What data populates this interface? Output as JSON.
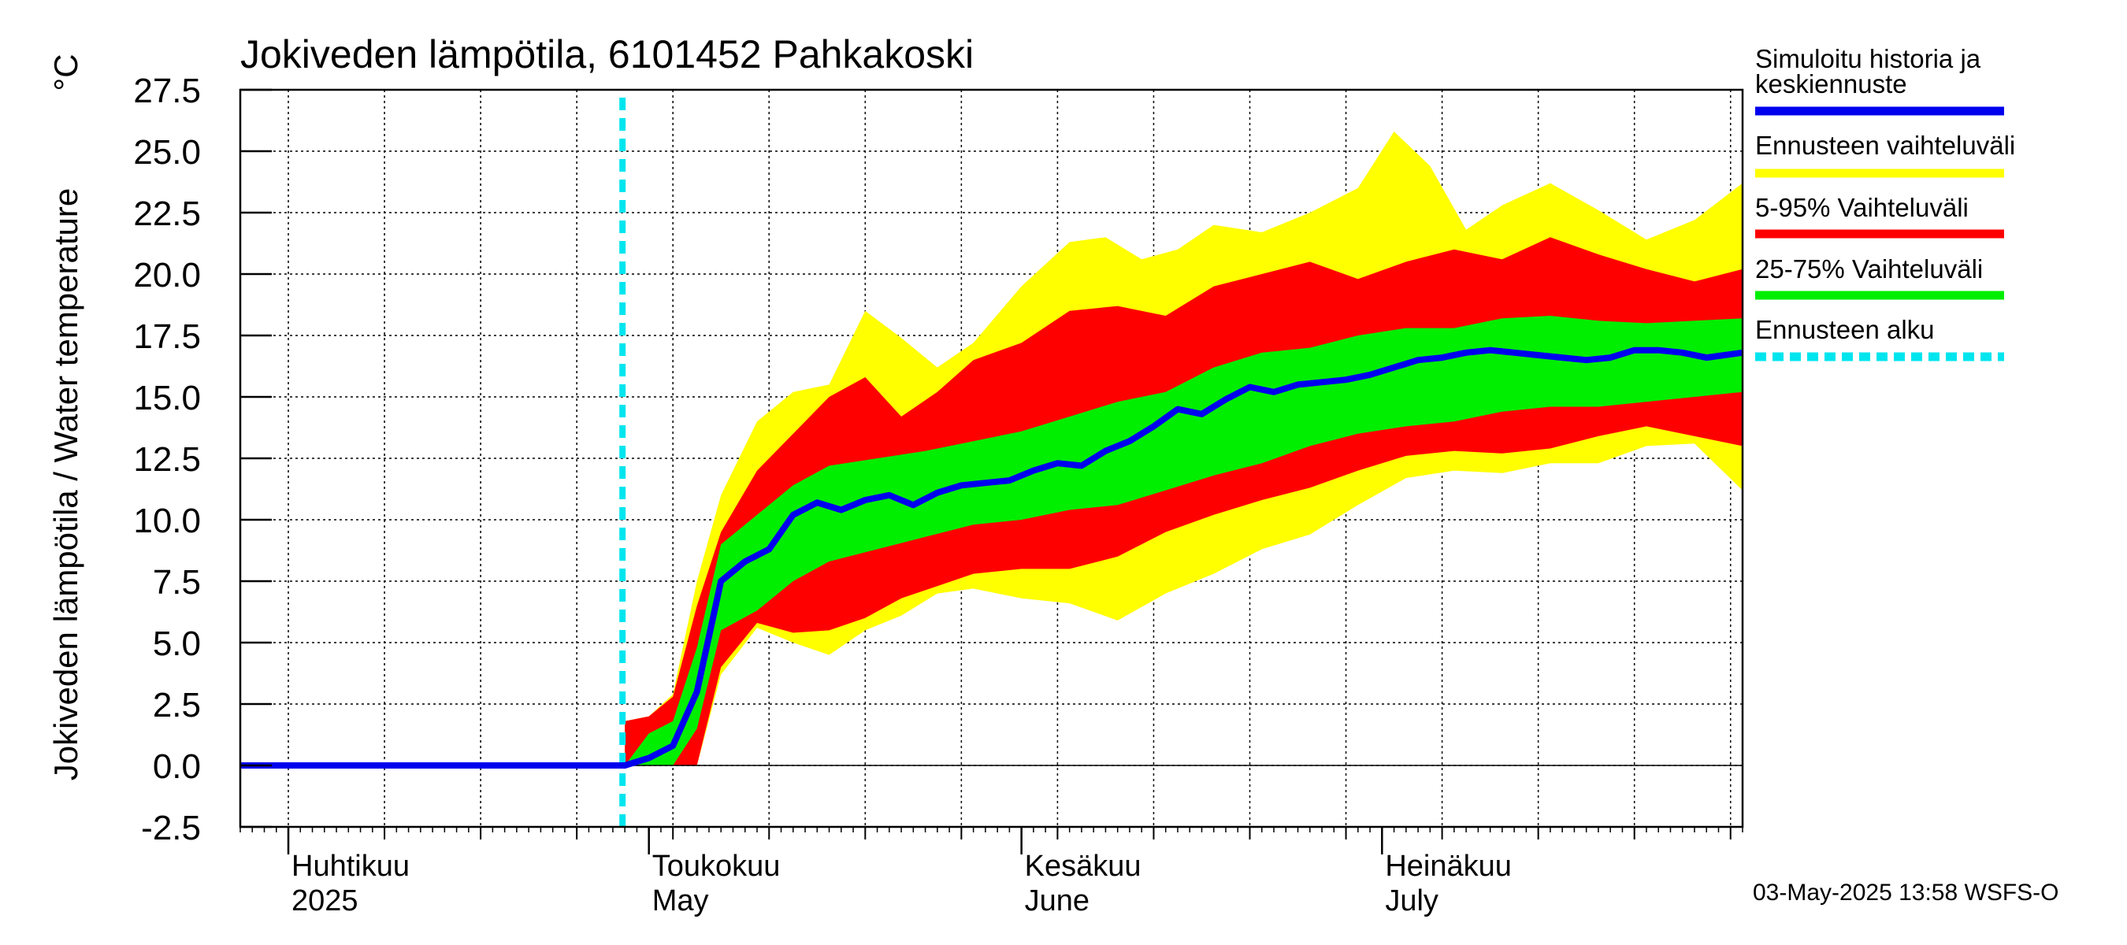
{
  "chart_data": {
    "type": "area",
    "title": "Jokiveden lämpötila, 6101452 Pahkakoski",
    "ylabel": "Jokiveden lämpötila / Water temperature",
    "yunit": "°C",
    "ylim": [
      -2.5,
      27.5
    ],
    "yticks": [
      "27.5",
      "25.0",
      "22.5",
      "20.0",
      "17.5",
      "15.0",
      "12.5",
      "10.0",
      "7.5",
      "5.0",
      "2.5",
      "0.0",
      "-2.5"
    ],
    "xlim": [
      "2025-03-28",
      "2025-07-31"
    ],
    "grid": true,
    "legend_position": "right",
    "month_labels": [
      {
        "date": "2025-04-01",
        "fi": "Huhtikuu",
        "en": "2025"
      },
      {
        "date": "2025-05-01",
        "fi": "Toukokuu",
        "en": "May"
      },
      {
        "date": "2025-06-01",
        "fi": "Kesäkuu",
        "en": "June"
      },
      {
        "date": "2025-07-01",
        "fi": "Heinäkuu",
        "en": "July"
      }
    ],
    "forecast_start": "2025-04-29",
    "legend": [
      {
        "key": "median",
        "label_lines": [
          "Simuloitu historia ja",
          "keskiennuste"
        ],
        "color": "#0000ee"
      },
      {
        "key": "range",
        "label_lines": [
          "Ennusteen vaihteluväli"
        ],
        "color": "#ffff00"
      },
      {
        "key": "p5_95",
        "label_lines": [
          "5-95% Vaihteluväli"
        ],
        "color": "#ff0000"
      },
      {
        "key": "p25_75",
        "label_lines": [
          "25-75% Vaihteluväli"
        ],
        "color": "#00ee00"
      },
      {
        "key": "start",
        "label_lines": [
          "Ennusteen alku"
        ],
        "color": "#00e5ee"
      }
    ],
    "colors": {
      "range": "#ffff00",
      "p5_95": "#ff0000",
      "p25_75": "#00ee00",
      "median": "#0000ee",
      "start": "#00e5ee"
    },
    "series": [
      {
        "key": "median",
        "x": [
          "2025-03-28",
          "2025-04-29",
          "2025-05-01",
          "2025-05-03",
          "2025-05-05",
          "2025-05-07",
          "2025-05-09",
          "2025-05-11",
          "2025-05-13",
          "2025-05-15",
          "2025-05-17",
          "2025-05-19",
          "2025-05-21",
          "2025-05-23",
          "2025-05-25",
          "2025-05-27",
          "2025-05-29",
          "2025-05-31",
          "2025-06-02",
          "2025-06-04",
          "2025-06-06",
          "2025-06-08",
          "2025-06-10",
          "2025-06-12",
          "2025-06-14",
          "2025-06-16",
          "2025-06-18",
          "2025-06-20",
          "2025-06-22",
          "2025-06-24",
          "2025-06-26",
          "2025-06-28",
          "2025-06-30",
          "2025-07-02",
          "2025-07-04",
          "2025-07-06",
          "2025-07-08",
          "2025-07-10",
          "2025-07-12",
          "2025-07-14",
          "2025-07-16",
          "2025-07-18",
          "2025-07-20",
          "2025-07-22",
          "2025-07-24",
          "2025-07-26",
          "2025-07-28",
          "2025-07-31"
        ],
        "y": [
          0.0,
          0.0,
          0.3,
          0.8,
          3.0,
          7.5,
          8.3,
          8.8,
          10.2,
          10.7,
          10.4,
          10.8,
          11.0,
          10.6,
          11.1,
          11.4,
          11.5,
          11.6,
          12.0,
          12.3,
          12.2,
          12.8,
          13.2,
          13.8,
          14.5,
          14.3,
          14.9,
          15.4,
          15.2,
          15.5,
          15.6,
          15.7,
          15.9,
          16.2,
          16.5,
          16.6,
          16.8,
          16.9,
          16.8,
          16.7,
          16.6,
          16.5,
          16.6,
          16.9,
          16.9,
          16.8,
          16.6,
          16.8
        ]
      },
      {
        "key": "p25_75_upper",
        "x": [
          "2025-04-29",
          "2025-05-01",
          "2025-05-03",
          "2025-05-05",
          "2025-05-07",
          "2025-05-10",
          "2025-05-13",
          "2025-05-16",
          "2025-05-20",
          "2025-05-24",
          "2025-05-28",
          "2025-06-01",
          "2025-06-05",
          "2025-06-09",
          "2025-06-13",
          "2025-06-17",
          "2025-06-21",
          "2025-06-25",
          "2025-06-29",
          "2025-07-03",
          "2025-07-07",
          "2025-07-11",
          "2025-07-15",
          "2025-07-19",
          "2025-07-23",
          "2025-07-27",
          "2025-07-31"
        ],
        "y": [
          0.0,
          1.3,
          1.8,
          4.8,
          9.0,
          10.2,
          11.4,
          12.2,
          12.5,
          12.8,
          13.2,
          13.6,
          14.2,
          14.8,
          15.2,
          16.2,
          16.8,
          17.0,
          17.5,
          17.8,
          17.8,
          18.2,
          18.3,
          18.1,
          18.0,
          18.1,
          18.2
        ]
      },
      {
        "key": "p25_75_lower",
        "x": [
          "2025-04-29",
          "2025-05-01",
          "2025-05-03",
          "2025-05-05",
          "2025-05-07",
          "2025-05-10",
          "2025-05-13",
          "2025-05-16",
          "2025-05-20",
          "2025-05-24",
          "2025-05-28",
          "2025-06-01",
          "2025-06-05",
          "2025-06-09",
          "2025-06-13",
          "2025-06-17",
          "2025-06-21",
          "2025-06-25",
          "2025-06-29",
          "2025-07-03",
          "2025-07-07",
          "2025-07-11",
          "2025-07-15",
          "2025-07-19",
          "2025-07-23",
          "2025-07-27",
          "2025-07-31"
        ],
        "y": [
          0.0,
          0.0,
          0.0,
          1.5,
          5.5,
          6.3,
          7.5,
          8.3,
          8.8,
          9.3,
          9.8,
          10.0,
          10.4,
          10.6,
          11.2,
          11.8,
          12.3,
          13.0,
          13.5,
          13.8,
          14.0,
          14.4,
          14.6,
          14.6,
          14.8,
          15.0,
          15.2
        ]
      },
      {
        "key": "p5_95_upper",
        "x": [
          "2025-04-29",
          "2025-05-01",
          "2025-05-03",
          "2025-05-05",
          "2025-05-07",
          "2025-05-10",
          "2025-05-13",
          "2025-05-16",
          "2025-05-19",
          "2025-05-22",
          "2025-05-25",
          "2025-05-28",
          "2025-06-01",
          "2025-06-05",
          "2025-06-09",
          "2025-06-13",
          "2025-06-17",
          "2025-06-21",
          "2025-06-25",
          "2025-06-29",
          "2025-07-03",
          "2025-07-07",
          "2025-07-11",
          "2025-07-15",
          "2025-07-19",
          "2025-07-23",
          "2025-07-27",
          "2025-07-31"
        ],
        "y": [
          1.8,
          2.0,
          2.8,
          6.5,
          9.5,
          12.0,
          13.5,
          15.0,
          15.8,
          14.2,
          15.2,
          16.5,
          17.2,
          18.5,
          18.7,
          18.3,
          19.5,
          20.0,
          20.5,
          19.8,
          20.5,
          21.0,
          20.6,
          21.5,
          20.8,
          20.2,
          19.7,
          20.2
        ]
      },
      {
        "key": "p5_95_lower",
        "x": [
          "2025-04-29",
          "2025-05-01",
          "2025-05-03",
          "2025-05-05",
          "2025-05-07",
          "2025-05-10",
          "2025-05-13",
          "2025-05-16",
          "2025-05-19",
          "2025-05-22",
          "2025-05-25",
          "2025-05-28",
          "2025-06-01",
          "2025-06-05",
          "2025-06-09",
          "2025-06-13",
          "2025-06-17",
          "2025-06-21",
          "2025-06-25",
          "2025-06-29",
          "2025-07-03",
          "2025-07-07",
          "2025-07-11",
          "2025-07-15",
          "2025-07-19",
          "2025-07-23",
          "2025-07-27",
          "2025-07-31"
        ],
        "y": [
          0.0,
          0.0,
          0.0,
          0.0,
          4.0,
          5.8,
          5.4,
          5.5,
          6.0,
          6.8,
          7.3,
          7.8,
          8.0,
          8.0,
          8.5,
          9.5,
          10.2,
          10.8,
          11.3,
          12.0,
          12.6,
          12.8,
          12.7,
          12.9,
          13.4,
          13.8,
          13.4,
          13.0
        ]
      },
      {
        "key": "range_upper",
        "x": [
          "2025-04-29",
          "2025-05-01",
          "2025-05-03",
          "2025-05-05",
          "2025-05-07",
          "2025-05-10",
          "2025-05-13",
          "2025-05-16",
          "2025-05-19",
          "2025-05-22",
          "2025-05-25",
          "2025-05-28",
          "2025-06-01",
          "2025-06-05",
          "2025-06-08",
          "2025-06-11",
          "2025-06-14",
          "2025-06-17",
          "2025-06-21",
          "2025-06-25",
          "2025-06-29",
          "2025-07-02",
          "2025-07-05",
          "2025-07-08",
          "2025-07-11",
          "2025-07-15",
          "2025-07-19",
          "2025-07-23",
          "2025-07-27",
          "2025-07-31"
        ],
        "y": [
          1.8,
          2.0,
          2.9,
          7.5,
          11.0,
          14.0,
          15.2,
          15.5,
          18.5,
          17.4,
          16.2,
          17.2,
          19.5,
          21.3,
          21.5,
          20.6,
          21.0,
          22.0,
          21.7,
          22.5,
          23.5,
          25.8,
          24.4,
          21.8,
          22.8,
          23.7,
          22.6,
          21.4,
          22.2,
          23.7
        ]
      },
      {
        "key": "range_lower",
        "x": [
          "2025-04-29",
          "2025-05-01",
          "2025-05-03",
          "2025-05-05",
          "2025-05-07",
          "2025-05-10",
          "2025-05-13",
          "2025-05-16",
          "2025-05-19",
          "2025-05-22",
          "2025-05-25",
          "2025-05-28",
          "2025-06-01",
          "2025-06-05",
          "2025-06-09",
          "2025-06-13",
          "2025-06-17",
          "2025-06-21",
          "2025-06-25",
          "2025-06-29",
          "2025-07-03",
          "2025-07-07",
          "2025-07-11",
          "2025-07-15",
          "2025-07-19",
          "2025-07-23",
          "2025-07-27",
          "2025-07-31"
        ],
        "y": [
          0.0,
          0.0,
          0.0,
          0.0,
          3.7,
          5.6,
          5.0,
          4.5,
          5.5,
          6.1,
          7.0,
          7.2,
          6.8,
          6.6,
          5.9,
          7.0,
          7.8,
          8.8,
          9.4,
          10.6,
          11.7,
          12.0,
          11.9,
          12.3,
          12.3,
          13.0,
          13.1,
          11.2
        ]
      }
    ]
  },
  "footer": {
    "timestamp": "03-May-2025 13:58 WSFS-O"
  }
}
